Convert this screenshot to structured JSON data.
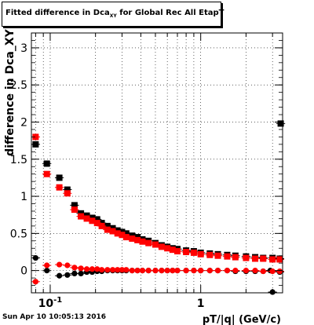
{
  "title": {
    "main": "Fitted difference in Dca",
    "sub": "XY",
    "rest": " for Global Rec All EtapT"
  },
  "footer": {
    "timestamp": "Sun Apr 10 10:05:13 2016"
  },
  "colors": {
    "series_black": "#000000",
    "series_red": "#ff0000"
  },
  "chart_data": {
    "type": "scatter",
    "title": "Fitted difference in Dca_XY for Global Rec All EtapT",
    "xlabel": "pT/|q| (GeV/c)",
    "ylabel": "difference in Dca_XY",
    "x_scale": "log",
    "xlim": [
      0.075,
      3.5
    ],
    "ylim": [
      -0.3,
      3.2
    ],
    "grid": true,
    "x_ticks": [
      {
        "value": 0.1,
        "label": "10",
        "exp": "-1"
      },
      {
        "value": 1,
        "label": "1",
        "exp": ""
      }
    ],
    "y_ticks": [
      0,
      0.5,
      1,
      1.5,
      2,
      2.5,
      3
    ],
    "y_tick_labels": [
      "0",
      "0.5",
      "1",
      "1.5",
      "2",
      "2.5",
      "3"
    ],
    "series": [
      {
        "color": "#000000",
        "points": [
          [
            0.08,
            1.7
          ],
          [
            0.095,
            1.44
          ],
          [
            0.115,
            1.25
          ],
          [
            0.13,
            1.09
          ],
          [
            0.145,
            0.88
          ],
          [
            0.16,
            0.77
          ],
          [
            0.175,
            0.74
          ],
          [
            0.19,
            0.71
          ],
          [
            0.205,
            0.69
          ],
          [
            0.22,
            0.64
          ],
          [
            0.24,
            0.6
          ],
          [
            0.26,
            0.57
          ],
          [
            0.28,
            0.54
          ],
          [
            0.3,
            0.52
          ],
          [
            0.32,
            0.5
          ],
          [
            0.35,
            0.47
          ],
          [
            0.38,
            0.45
          ],
          [
            0.41,
            0.42
          ],
          [
            0.45,
            0.4
          ],
          [
            0.5,
            0.37
          ],
          [
            0.55,
            0.34
          ],
          [
            0.6,
            0.32
          ],
          [
            0.65,
            0.3
          ],
          [
            0.7,
            0.29
          ],
          [
            0.8,
            0.27
          ],
          [
            0.9,
            0.26
          ],
          [
            1.0,
            0.24
          ],
          [
            1.15,
            0.23
          ],
          [
            1.3,
            0.22
          ],
          [
            1.5,
            0.21
          ],
          [
            1.7,
            0.2
          ],
          [
            2.0,
            0.19
          ],
          [
            2.3,
            0.18
          ],
          [
            2.6,
            0.17
          ],
          [
            3.0,
            0.17
          ],
          [
            3.35,
            0.16
          ],
          [
            3.4,
            1.98
          ]
        ]
      },
      {
        "color": "#ff0000",
        "points": [
          [
            0.08,
            1.8
          ],
          [
            0.095,
            1.3
          ],
          [
            0.115,
            1.12
          ],
          [
            0.13,
            1.04
          ],
          [
            0.145,
            0.82
          ],
          [
            0.16,
            0.73
          ],
          [
            0.175,
            0.7
          ],
          [
            0.19,
            0.67
          ],
          [
            0.205,
            0.64
          ],
          [
            0.22,
            0.6
          ],
          [
            0.24,
            0.55
          ],
          [
            0.26,
            0.53
          ],
          [
            0.28,
            0.5
          ],
          [
            0.3,
            0.48
          ],
          [
            0.32,
            0.45
          ],
          [
            0.35,
            0.43
          ],
          [
            0.38,
            0.41
          ],
          [
            0.41,
            0.39
          ],
          [
            0.45,
            0.37
          ],
          [
            0.5,
            0.35
          ],
          [
            0.55,
            0.32
          ],
          [
            0.6,
            0.3
          ],
          [
            0.65,
            0.28
          ],
          [
            0.7,
            0.26
          ],
          [
            0.8,
            0.25
          ],
          [
            0.9,
            0.24
          ],
          [
            1.0,
            0.22
          ],
          [
            1.15,
            0.21
          ],
          [
            1.3,
            0.2
          ],
          [
            1.5,
            0.19
          ],
          [
            1.7,
            0.18
          ],
          [
            2.0,
            0.17
          ],
          [
            2.3,
            0.16
          ],
          [
            2.6,
            0.16
          ],
          [
            3.0,
            0.15
          ],
          [
            3.35,
            0.15
          ]
        ]
      },
      {
        "color": "#000000",
        "points": [
          [
            0.08,
            0.17
          ],
          [
            0.095,
            0.0
          ],
          [
            0.115,
            -0.07
          ],
          [
            0.13,
            -0.06
          ],
          [
            0.145,
            -0.04
          ],
          [
            0.16,
            -0.04
          ],
          [
            0.175,
            -0.02
          ],
          [
            0.19,
            -0.02
          ],
          [
            0.205,
            -0.01
          ],
          [
            0.22,
            -0.01
          ],
          [
            0.24,
            0.0
          ],
          [
            0.26,
            0.0
          ],
          [
            0.28,
            0.0
          ],
          [
            0.3,
            0.0
          ],
          [
            0.32,
            0.0
          ],
          [
            0.35,
            0.0
          ],
          [
            0.38,
            0.0
          ],
          [
            0.41,
            0.0
          ],
          [
            0.45,
            0.0
          ],
          [
            0.5,
            0.0
          ],
          [
            0.55,
            0.0
          ],
          [
            0.6,
            0.0
          ],
          [
            0.65,
            0.0
          ],
          [
            0.7,
            0.0
          ],
          [
            0.8,
            0.0
          ],
          [
            0.9,
            0.0
          ],
          [
            1.0,
            0.0
          ],
          [
            1.15,
            0.0
          ],
          [
            1.3,
            0.0
          ],
          [
            1.5,
            0.0
          ],
          [
            1.7,
            -0.01
          ],
          [
            2.0,
            -0.01
          ],
          [
            2.3,
            -0.01
          ],
          [
            2.6,
            -0.01
          ],
          [
            2.9,
            0.0
          ],
          [
            3.0,
            -0.29
          ],
          [
            3.35,
            -0.02
          ]
        ]
      },
      {
        "color": "#ff0000",
        "points": [
          [
            0.08,
            -0.15
          ],
          [
            0.095,
            0.07
          ],
          [
            0.115,
            0.08
          ],
          [
            0.13,
            0.07
          ],
          [
            0.145,
            0.04
          ],
          [
            0.16,
            0.03
          ],
          [
            0.175,
            0.02
          ],
          [
            0.19,
            0.02
          ],
          [
            0.205,
            0.02
          ],
          [
            0.22,
            0.01
          ],
          [
            0.24,
            0.01
          ],
          [
            0.26,
            0.01
          ],
          [
            0.28,
            0.01
          ],
          [
            0.3,
            0.01
          ],
          [
            0.32,
            0.01
          ],
          [
            0.35,
            0.0
          ],
          [
            0.38,
            0.0
          ],
          [
            0.41,
            0.0
          ],
          [
            0.45,
            0.0
          ],
          [
            0.5,
            0.0
          ],
          [
            0.55,
            0.0
          ],
          [
            0.6,
            0.0
          ],
          [
            0.65,
            0.0
          ],
          [
            0.7,
            0.0
          ],
          [
            0.8,
            0.0
          ],
          [
            0.9,
            0.0
          ],
          [
            1.0,
            0.0
          ],
          [
            1.15,
            0.0
          ],
          [
            1.3,
            0.0
          ],
          [
            1.5,
            0.0
          ],
          [
            1.7,
            0.0
          ],
          [
            2.0,
            0.0
          ],
          [
            2.3,
            0.0
          ],
          [
            2.6,
            -0.01
          ],
          [
            3.0,
            -0.01
          ],
          [
            3.35,
            -0.01
          ]
        ]
      }
    ]
  }
}
